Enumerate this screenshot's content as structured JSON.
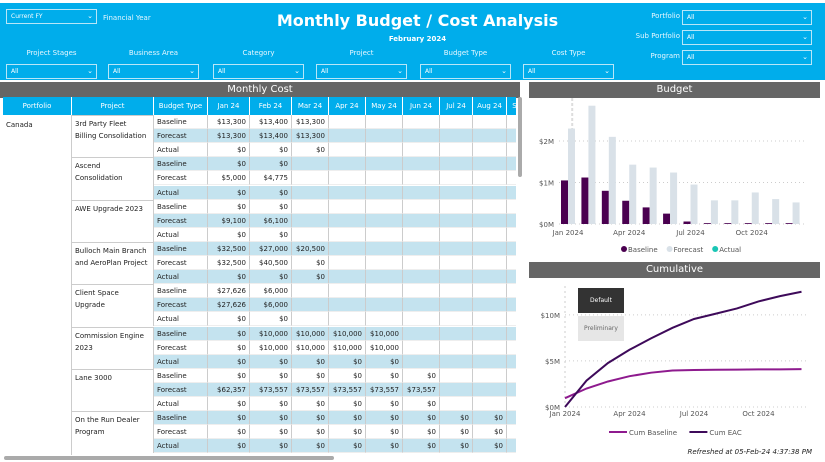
{
  "header": {
    "title": "Monthly Budget / Cost Analysis",
    "subtitle": "February 2024",
    "fy": {
      "value": "Current FY",
      "label": "Financial Year"
    },
    "filters": [
      {
        "label": "Project Stages",
        "value": "All"
      },
      {
        "label": "Business Area",
        "value": "All"
      },
      {
        "label": "Category",
        "value": "All"
      },
      {
        "label": "Project",
        "value": "All"
      },
      {
        "label": "Budget Type",
        "value": "All"
      },
      {
        "label": "Cost Type",
        "value": "All"
      }
    ],
    "right_filters": [
      {
        "label": "Portfolio",
        "value": "All"
      },
      {
        "label": "Sub Portfolio",
        "value": "All"
      },
      {
        "label": "Program",
        "value": "All"
      }
    ]
  },
  "table": {
    "title": "Monthly Cost",
    "columns": [
      "Portfolio",
      "Project",
      "Budget Type",
      "Jan 24",
      "Feb 24",
      "Mar 24",
      "Apr 24",
      "May 24",
      "Jun 24",
      "Jul 24",
      "Aug 24",
      "S"
    ],
    "portfolio": "Canada",
    "projects": [
      {
        "name": "3rd Party Fleet Billing Consolidation",
        "rows": [
          [
            "Baseline",
            "$13,300",
            "$13,400",
            "$13,300"
          ],
          [
            "Forecast",
            "$13,300",
            "$13,400",
            "$13,300"
          ],
          [
            "Actual",
            "$0",
            "$0",
            "$0"
          ]
        ]
      },
      {
        "name": "Ascend Consolidation",
        "rows": [
          [
            "Baseline",
            "$0",
            "$0"
          ],
          [
            "Forecast",
            "$5,000",
            "$4,775"
          ],
          [
            "Actual",
            "$0",
            "$0"
          ]
        ]
      },
      {
        "name": "AWE Upgrade 2023",
        "rows": [
          [
            "Baseline",
            "$0",
            "$0"
          ],
          [
            "Forecast",
            "$9,100",
            "$6,100"
          ],
          [
            "Actual",
            "$0",
            "$0"
          ]
        ]
      },
      {
        "name": "Bulloch Main Branch and AeroPlan Project",
        "rows": [
          [
            "Baseline",
            "$32,500",
            "$27,000",
            "$20,500"
          ],
          [
            "Forecast",
            "$32,500",
            "$40,500",
            "$0"
          ],
          [
            "Actual",
            "$0",
            "$0",
            "$0"
          ]
        ]
      },
      {
        "name": "Client Space Upgrade",
        "rows": [
          [
            "Baseline",
            "$27,626",
            "$6,000"
          ],
          [
            "Forecast",
            "$27,626",
            "$6,000"
          ],
          [
            "Actual",
            "$0",
            "$0"
          ]
        ]
      },
      {
        "name": "Commission Engine 2023",
        "rows": [
          [
            "Baseline",
            "$0",
            "$10,000",
            "$10,000",
            "$10,000",
            "$10,000"
          ],
          [
            "Forecast",
            "$0",
            "$10,000",
            "$10,000",
            "$10,000",
            "$10,000"
          ],
          [
            "Actual",
            "$0",
            "$0",
            "$0",
            "$0",
            "$0"
          ]
        ]
      },
      {
        "name": "Lane 3000",
        "rows": [
          [
            "Baseline",
            "$0",
            "$0",
            "$0",
            "$0",
            "$0",
            "$0"
          ],
          [
            "Forecast",
            "$62,357",
            "$73,557",
            "$73,557",
            "$73,557",
            "$73,557",
            "$73,557"
          ],
          [
            "Actual",
            "$0",
            "$0",
            "$0",
            "$0",
            "$0",
            "$0"
          ]
        ]
      },
      {
        "name": "On the Run Dealer Program",
        "rows": [
          [
            "Baseline",
            "$0",
            "$0",
            "$0",
            "$0",
            "$0",
            "$0",
            "$0",
            "$0"
          ],
          [
            "Forecast",
            "$0",
            "$0",
            "$0",
            "$0",
            "$0",
            "$0",
            "$0",
            "$0"
          ],
          [
            "Actual",
            "$0",
            "$0",
            "$0",
            "$0",
            "$0",
            "$0",
            "$0",
            "$0"
          ]
        ]
      }
    ]
  },
  "chart_data": [
    {
      "type": "bar",
      "title": "Budget",
      "x": [
        "Jan 2024",
        "Feb 2024",
        "Mar 2024",
        "Apr 2024",
        "May 2024",
        "Jun 2024",
        "Jul 2024",
        "Aug 2024",
        "Sep 2024",
        "Oct 2024",
        "Nov 2024",
        "Dec 2024"
      ],
      "xticks": [
        "Jan 2024",
        "Apr 2024",
        "Jul 2024",
        "Oct 2024"
      ],
      "yticks": [
        "$0M",
        "$1M",
        "$2M"
      ],
      "ylim": [
        0,
        3000000
      ],
      "grid": true,
      "legend": "bottom",
      "series": [
        {
          "name": "Baseline",
          "color": "#4a0050",
          "values": [
            1050000,
            1120000,
            800000,
            560000,
            400000,
            250000,
            60000,
            20000,
            20000,
            20000,
            20000,
            20000
          ]
        },
        {
          "name": "Forecast",
          "color": "#d9e1e8",
          "values": [
            2300000,
            2850000,
            2100000,
            1430000,
            1360000,
            1240000,
            950000,
            570000,
            570000,
            760000,
            600000,
            520000
          ]
        },
        {
          "name": "Actual",
          "color": "#1ac6b5",
          "values": [
            0,
            0,
            0,
            0,
            0,
            0,
            0,
            0,
            0,
            0,
            0,
            0
          ]
        }
      ]
    },
    {
      "type": "line",
      "title": "Cumulative",
      "x": [
        "Jan 2024",
        "Feb 2024",
        "Mar 2024",
        "Apr 2024",
        "May 2024",
        "Jun 2024",
        "Jul 2024",
        "Aug 2024",
        "Sep 2024",
        "Oct 2024",
        "Nov 2024",
        "Dec 2024"
      ],
      "xticks": [
        "Jan 2024",
        "Apr 2024",
        "Jul 2024",
        "Oct 2024"
      ],
      "yticks": [
        "$0M",
        "$5M",
        "$10M"
      ],
      "ylim": [
        0,
        14000000
      ],
      "grid": true,
      "legend": "bottom",
      "series": [
        {
          "name": "Cum Baseline",
          "color": "#8e1a8e",
          "values": [
            1000000,
            2100000,
            2900000,
            3500000,
            3900000,
            4150000,
            4200000,
            4230000,
            4250000,
            4270000,
            4280000,
            4300000
          ]
        },
        {
          "name": "Cum EAC",
          "color": "#3e0a5a",
          "values": [
            0,
            3000000,
            5000000,
            6500000,
            7800000,
            9000000,
            10000000,
            10600000,
            11200000,
            12000000,
            12600000,
            13100000
          ]
        }
      ]
    }
  ],
  "buttons": {
    "default": "Default",
    "preliminary": "Preliminary"
  },
  "refreshed": "Refreshed at  05-Feb-24 4:37:38 PM"
}
